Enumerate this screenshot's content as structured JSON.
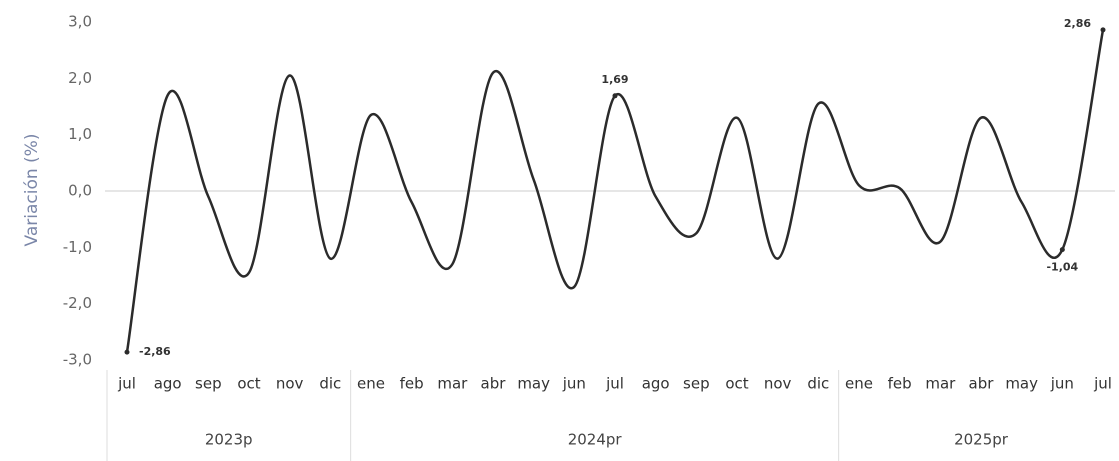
{
  "chart_data": {
    "type": "line",
    "y_axis_label": "Variación (%)",
    "categories": [
      "jul",
      "ago",
      "sep",
      "oct",
      "nov",
      "dic",
      "ene",
      "feb",
      "mar",
      "abr",
      "may",
      "jun",
      "jul",
      "ago",
      "sep",
      "oct",
      "nov",
      "dic",
      "ene",
      "feb",
      "mar",
      "abr",
      "may",
      "jun",
      "jul"
    ],
    "groups": [
      {
        "label": "2023p",
        "count": 6
      },
      {
        "label": "2024pr",
        "count": 12
      },
      {
        "label": "2025pr",
        "count": 7
      }
    ],
    "series": [
      {
        "name": "Variación",
        "color": "#2b2b2b",
        "values": [
          -2.86,
          1.7,
          -0.1,
          -1.45,
          2.05,
          -1.2,
          1.35,
          -0.2,
          -1.3,
          2.1,
          0.2,
          -1.7,
          1.69,
          -0.1,
          -0.75,
          1.3,
          -1.2,
          1.55,
          0.1,
          0.05,
          -0.9,
          1.3,
          -0.2,
          -1.04,
          2.86
        ],
        "value_labels": [
          "-2,86",
          null,
          null,
          null,
          null,
          null,
          null,
          null,
          null,
          null,
          null,
          null,
          "1,69",
          null,
          null,
          null,
          null,
          null,
          null,
          null,
          null,
          null,
          null,
          "-1,04",
          "2,86"
        ]
      }
    ],
    "ylim": [
      -3,
      3
    ],
    "yticks": [
      {
        "value": -3,
        "label": "-3,0"
      },
      {
        "value": -2,
        "label": "-2,0"
      },
      {
        "value": -1,
        "label": "-1,0"
      },
      {
        "value": 0,
        "label": "0,0"
      },
      {
        "value": 1,
        "label": "1,0"
      },
      {
        "value": 2,
        "label": "2,0"
      },
      {
        "value": 3,
        "label": "3,0"
      }
    ]
  }
}
